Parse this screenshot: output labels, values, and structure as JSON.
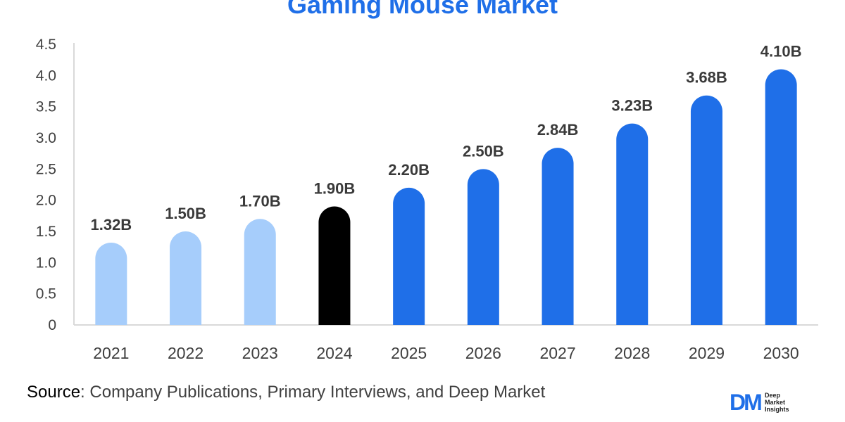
{
  "chart_data": {
    "type": "bar",
    "title": "Gaming Mouse Market",
    "xlabel": "",
    "ylabel": "",
    "categories": [
      "2021",
      "2022",
      "2023",
      "2024",
      "2025",
      "2026",
      "2027",
      "2028",
      "2029",
      "2030"
    ],
    "values": [
      1.32,
      1.5,
      1.7,
      1.9,
      2.2,
      2.5,
      2.84,
      3.23,
      3.68,
      4.1
    ],
    "data_labels": [
      "1.32B",
      "1.50B",
      "1.70B",
      "1.90B",
      "2.20B",
      "2.50B",
      "2.84B",
      "3.23B",
      "3.68B",
      "4.10B"
    ],
    "bar_colors": [
      "#a6cdfb",
      "#a6cdfb",
      "#a6cdfb",
      "#000000",
      "#1f6fe8",
      "#1f6fe8",
      "#1f6fe8",
      "#1f6fe8",
      "#1f6fe8",
      "#1f6fe8"
    ],
    "ylim": [
      0,
      4.5
    ],
    "yticks": [
      0,
      0.5,
      1.0,
      1.5,
      2.0,
      2.5,
      3.0,
      3.5,
      4.0,
      4.5
    ],
    "ytick_labels": [
      "0",
      "0.5",
      "1.0",
      "1.5",
      "2.0",
      "2.5",
      "3.0",
      "3.5",
      "4.0",
      "4.5"
    ],
    "grid": false,
    "legend": "none"
  },
  "source": {
    "prefix": "Source",
    "text": ": Company Publications, Primary Interviews, and Deep Market"
  },
  "logo": {
    "mark": "DM",
    "lines": [
      "Deep",
      "Market",
      "Insights"
    ]
  },
  "colors": {
    "title": "#1f6fe8",
    "axis": "#d9d9d9",
    "text": "#404040"
  }
}
